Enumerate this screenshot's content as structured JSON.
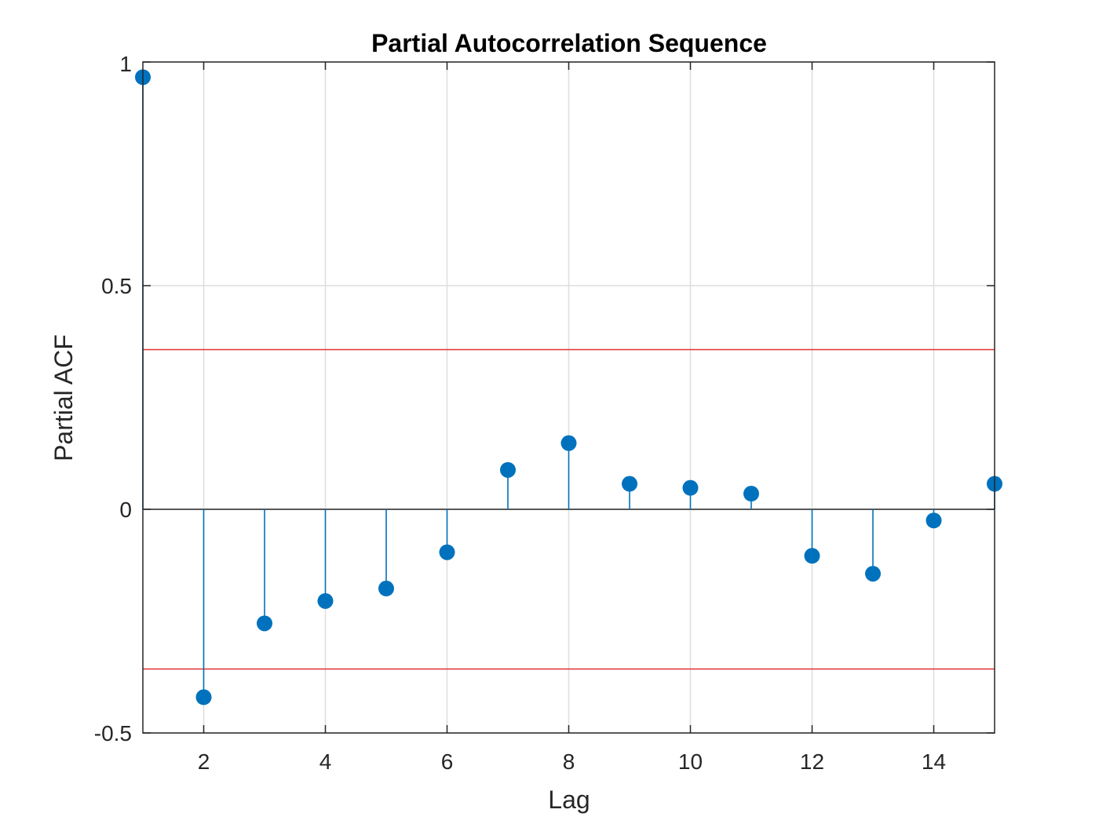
{
  "chart_data": {
    "type": "stem",
    "title": "Partial Autocorrelation Sequence",
    "xlabel": "Lag",
    "ylabel": "Partial ACF",
    "xlim": [
      1,
      15
    ],
    "ylim": [
      -0.5,
      1
    ],
    "xticks": [
      2,
      4,
      6,
      8,
      10,
      12,
      14
    ],
    "yticks": [
      -0.5,
      0,
      0.5,
      1
    ],
    "ytick_labels": [
      "-0.5",
      "0",
      "0.5",
      "1"
    ],
    "grid": true,
    "series": [
      {
        "x": [
          1,
          2,
          3,
          4,
          5,
          6,
          7,
          8,
          9,
          10,
          11,
          12,
          13,
          14,
          15
        ],
        "values": [
          0.966,
          -0.42,
          -0.255,
          -0.205,
          -0.177,
          -0.096,
          0.088,
          0.148,
          0.057,
          0.048,
          0.035,
          -0.104,
          -0.144,
          -0.025,
          0.057
        ],
        "color": "#0072BD"
      }
    ],
    "confidence_bounds": {
      "upper": 0.357,
      "lower": -0.357,
      "color": "#E03030"
    }
  }
}
